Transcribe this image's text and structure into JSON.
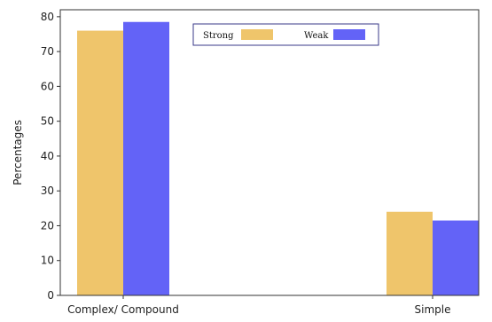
{
  "chart_data": {
    "type": "bar",
    "categories": [
      "Complex/ Compound",
      "Simple"
    ],
    "series": [
      {
        "name": "Strong",
        "values": [
          76,
          24
        ],
        "color": "#EFC56B"
      },
      {
        "name": "Weak",
        "values": [
          78.5,
          21.5
        ],
        "color": "#6363F7"
      }
    ],
    "title": "",
    "xlabel": "",
    "ylabel": "Percentages",
    "ylim": [
      0,
      82
    ],
    "yticks": [
      0,
      10,
      20,
      30,
      40,
      50,
      60,
      70,
      80
    ],
    "grid": false,
    "legend_position": "top-center"
  }
}
